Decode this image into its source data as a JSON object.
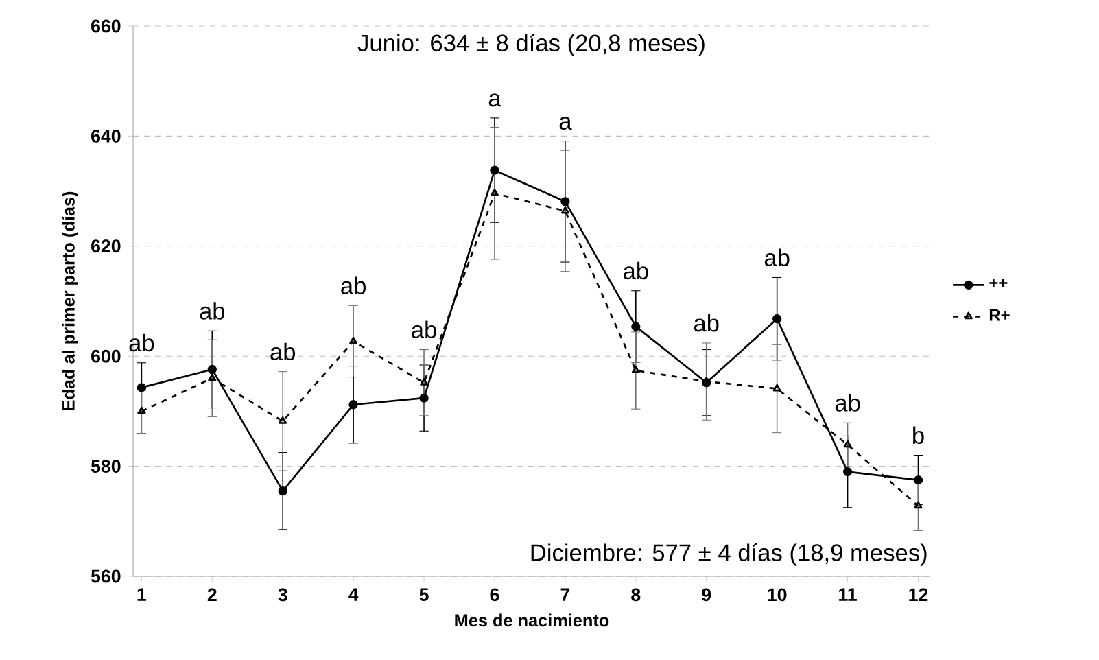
{
  "chart_data": {
    "type": "line",
    "xlabel": "Mes de nacimiento",
    "ylabel": "Edad al primer parto (días)",
    "x": [
      1,
      2,
      3,
      4,
      5,
      6,
      7,
      8,
      9,
      10,
      11,
      12
    ],
    "series": [
      {
        "name": "++",
        "color": "#000000",
        "marker": "circle",
        "line_style": "solid",
        "values": [
          594.3,
          597.6,
          575.5,
          591.2,
          592.4,
          633.8,
          628.1,
          605.4,
          595.2,
          606.8,
          579.0,
          577.5
        ],
        "errors": [
          4.5,
          7,
          7,
          7,
          6,
          9.5,
          11,
          6.5,
          6,
          7.5,
          6.5,
          4.5
        ]
      },
      {
        "name": "R+",
        "color": "#000000",
        "marker": "triangle",
        "line_style": "dashed",
        "values": [
          590.0,
          596.0,
          588.2,
          602.7,
          595.2,
          629.6,
          626.4,
          597.4,
          595.4,
          594.1,
          583.9,
          572.8
        ],
        "errors": [
          4,
          7,
          9,
          6.5,
          6,
          12,
          11,
          7,
          7,
          8,
          4,
          4.5
        ]
      }
    ],
    "xlim": [
      0.88,
      12.17
    ],
    "xticks": [
      1,
      2,
      3,
      4,
      5,
      6,
      7,
      8,
      9,
      10,
      11,
      12
    ],
    "ylim": [
      560,
      660
    ],
    "yticks": [
      560,
      580,
      600,
      620,
      640,
      660
    ],
    "grid": "y",
    "legend": "right",
    "annotations": [
      "Junio: 634 ± 8 días (20,8 meses)",
      "Diciembre: 577 ± 4 días (18,9 meses)",
      "ab",
      "ab",
      "ab",
      "ab",
      "ab",
      "a",
      "a",
      "ab",
      "ab",
      "ab",
      "ab",
      "b"
    ]
  }
}
